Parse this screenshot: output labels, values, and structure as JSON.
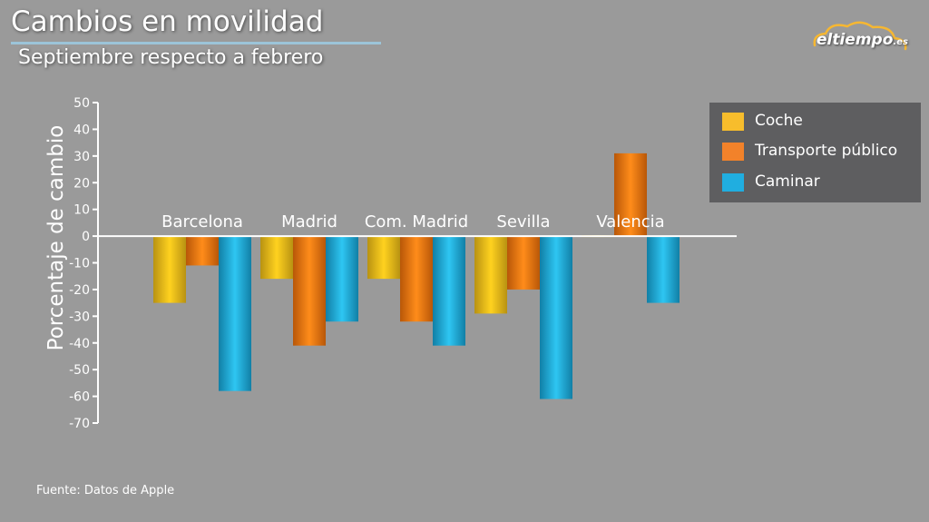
{
  "header": {
    "title": "Cambios en movilidad",
    "subtitle": "Septiembre respecto a febrero"
  },
  "logo": {
    "text": "eltiempo",
    "suffix": ".es"
  },
  "source": "Fuente: Datos de Apple",
  "colors": {
    "background": "#9a9a9a",
    "coche": "#f2b700",
    "transporte": "#f07b14",
    "caminar": "#1aa9d8",
    "legend_bg": "#5e5e60"
  },
  "chart_data": {
    "type": "bar",
    "title": "Cambios en movilidad",
    "subtitle": "Septiembre respecto a febrero",
    "ylabel": "Porcentaje de cambio",
    "xlabel": "",
    "ylim": [
      -70,
      50
    ],
    "yticks": [
      50,
      40,
      30,
      20,
      10,
      0,
      -10,
      -20,
      -30,
      -40,
      -50,
      -60,
      -70
    ],
    "categories": [
      "Barcelona",
      "Madrid",
      "Com. Madrid",
      "Sevilla",
      "Valencia"
    ],
    "series": [
      {
        "name": "Coche",
        "color": "#f2b700",
        "values": [
          -25,
          -16,
          -16,
          -29,
          0
        ]
      },
      {
        "name": "Transporte público",
        "color": "#f07b14",
        "values": [
          -11,
          -41,
          -32,
          -20,
          31
        ]
      },
      {
        "name": "Caminar",
        "color": "#1aa9d8",
        "values": [
          -58,
          -32,
          -41,
          -61,
          -25
        ]
      }
    ],
    "legend": "top-right",
    "grid": false
  }
}
